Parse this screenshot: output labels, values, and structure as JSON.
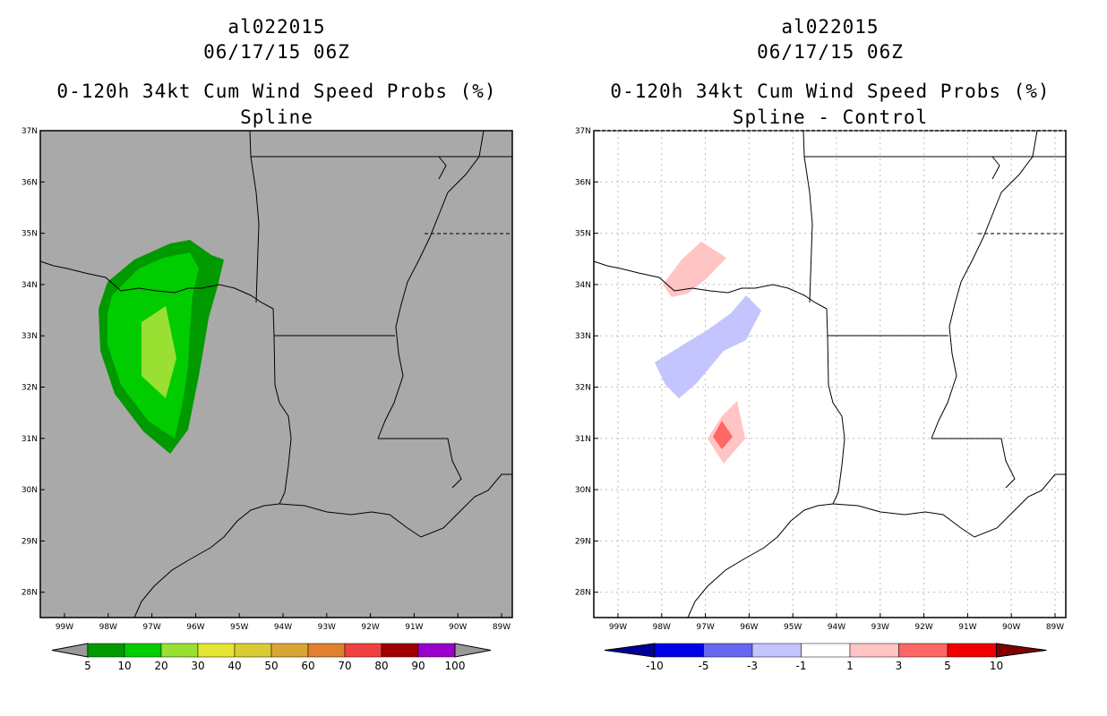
{
  "panels": [
    {
      "storm_id": "al022015",
      "datetime": "06/17/15 06Z",
      "product": "0-120h 34kt Cum Wind Speed Probs (%)",
      "subtitle": "Spline",
      "background": "#a9a9a9",
      "colorbar": {
        "labels": [
          "5",
          "10",
          "20",
          "30",
          "40",
          "50",
          "60",
          "70",
          "80",
          "90",
          "100"
        ],
        "colors": [
          "#009900",
          "#00cc00",
          "#99e033",
          "#e5e533",
          "#d9cc33",
          "#d9a633",
          "#e08030",
          "#f04040",
          "#a00000",
          "#9900cc"
        ],
        "end_color": "#999999"
      }
    },
    {
      "storm_id": "al022015",
      "datetime": "06/17/15 06Z",
      "product": "0-120h 34kt Cum Wind Speed Probs (%)",
      "subtitle": "Spline - Control",
      "background": "#ffffff",
      "colorbar": {
        "labels": [
          "-10",
          "-5",
          "-3",
          "-1",
          "1",
          "3",
          "5",
          "10"
        ],
        "colors": [
          "#0000e6",
          "#6666f0",
          "#c4c4ff",
          "#ffffff",
          "#ffc4c4",
          "#ff6666",
          "#f00000"
        ],
        "end_left": "#000099",
        "end_right": "#800000"
      }
    }
  ],
  "map": {
    "lon_ticks": [
      "99W",
      "98W",
      "97W",
      "96W",
      "95W",
      "94W",
      "93W",
      "92W",
      "91W",
      "90W",
      "89W"
    ],
    "lat_ticks": [
      "37N",
      "36N",
      "35N",
      "34N",
      "33N",
      "32N",
      "31N",
      "30N",
      "29N",
      "28N"
    ]
  }
}
